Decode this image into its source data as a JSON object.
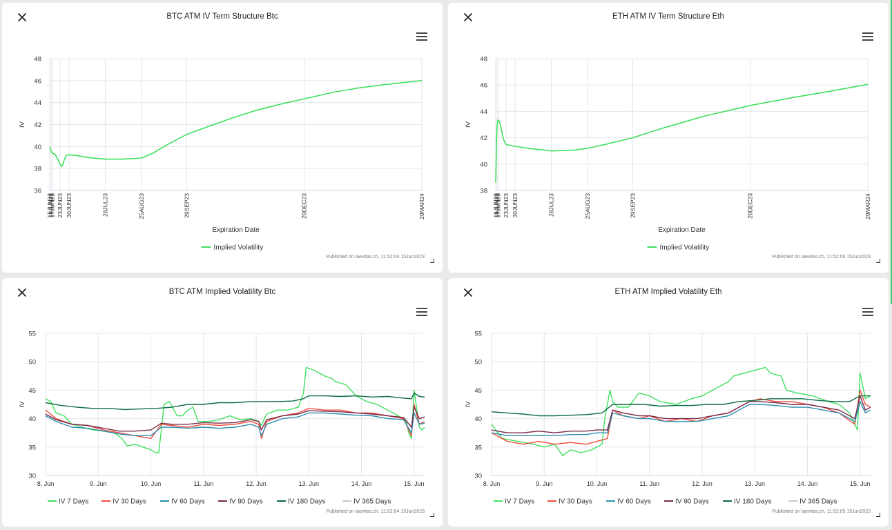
{
  "colors": {
    "iv7": "#3fe05e",
    "iv30": "#ef4b3c",
    "iv60": "#2c8fb0",
    "iv90": "#7a2a4a",
    "iv180": "#0d6b42",
    "iv365": "#c9c9c9",
    "grid": "#e3e6ec",
    "axis": "#333333"
  },
  "chart_data": [
    {
      "id": "btc-term",
      "type": "line",
      "title": "BTC ATM IV Term Structure Btc",
      "xlabel": "Expiration Date",
      "ylabel": "IV",
      "ylim": [
        36,
        48
      ],
      "yticks": [
        36,
        38,
        40,
        42,
        44,
        46,
        48
      ],
      "categories": [
        "15JUN23",
        "16JUN23",
        "17JUN23",
        "23JUN23",
        "30JUN23",
        "28JUL23",
        "25AUG23",
        "29SEP23",
        "29DEC23",
        "29MAR24"
      ],
      "x_days": [
        0,
        1,
        2,
        8,
        15,
        43,
        71,
        106,
        197,
        288
      ],
      "series": [
        {
          "name": "Implied Volatility",
          "color_key": "iv7",
          "x": [
            0,
            1,
            2,
            4,
            6,
            8,
            9,
            10,
            11,
            12,
            13,
            15,
            20,
            30,
            43,
            55,
            65,
            71,
            80,
            90,
            106,
            120,
            140,
            160,
            180,
            197,
            220,
            240,
            260,
            288
          ],
          "y": [
            40.0,
            39.6,
            39.4,
            39.3,
            38.9,
            38.4,
            38.2,
            38.3,
            38.7,
            39.0,
            39.2,
            39.25,
            39.2,
            39.0,
            38.85,
            38.85,
            38.9,
            38.95,
            39.4,
            40.1,
            41.1,
            41.7,
            42.55,
            43.3,
            43.9,
            44.35,
            44.95,
            45.35,
            45.65,
            46.0
          ]
        }
      ],
      "legend": "bottom-center",
      "credit": "Published on laevitas.ch, 11:52:04 15Jun2023"
    },
    {
      "id": "eth-term",
      "type": "line",
      "title": "ETH ATM IV Term Structure Eth",
      "xlabel": "Expiration Date",
      "ylabel": "IV",
      "ylim": [
        38,
        48
      ],
      "yticks": [
        38,
        40,
        42,
        44,
        46,
        48
      ],
      "categories": [
        "15JUN23",
        "16JUN23",
        "17JUN23",
        "23JUN23",
        "30JUN23",
        "28JUL23",
        "25AUG23",
        "29SEP23",
        "29DEC23",
        "29MAR24"
      ],
      "x_days": [
        0,
        1,
        2,
        8,
        15,
        43,
        71,
        106,
        197,
        288
      ],
      "series": [
        {
          "name": "Implied Volatility",
          "color_key": "iv7",
          "x": [
            0,
            0.5,
            1,
            1.5,
            2,
            3,
            4,
            5,
            6,
            7,
            8,
            10,
            15,
            25,
            43,
            60,
            71,
            85,
            106,
            130,
            160,
            197,
            230,
            260,
            288
          ],
          "y": [
            38.6,
            41.2,
            42.8,
            43.3,
            43.35,
            43.2,
            42.8,
            42.3,
            41.9,
            41.65,
            41.5,
            41.45,
            41.35,
            41.2,
            41.0,
            41.05,
            41.2,
            41.5,
            42.0,
            42.75,
            43.6,
            44.45,
            45.05,
            45.55,
            46.05
          ]
        }
      ],
      "legend": "bottom-center",
      "credit": "Published on laevitas.ch, 11:52:05 15Jun2023"
    },
    {
      "id": "btc-iv",
      "type": "line",
      "title": "BTC ATM Implied Volatility Btc",
      "ylabel": "IV",
      "ylim": [
        30,
        55
      ],
      "yticks": [
        30,
        35,
        40,
        45,
        50,
        55
      ],
      "xlim": [
        8.0,
        15.2
      ],
      "xticks": [
        8,
        9,
        10,
        11,
        12,
        13,
        14,
        15
      ],
      "xticklabels": [
        "8. Jun",
        "9. Jun",
        "10. Jun",
        "11. Jun",
        "12. Jun",
        "13. Jun",
        "14. Jun",
        "15. Jun"
      ],
      "legend": "bottom-center",
      "credit": "Published on laevitas.ch, 11:52:04 15Jun2023",
      "series": [
        {
          "name": "IV 7 Days",
          "color_key": "iv7",
          "x": [
            8.0,
            8.1,
            8.2,
            8.35,
            8.5,
            8.7,
            8.9,
            9.1,
            9.3,
            9.45,
            9.55,
            9.7,
            9.85,
            10.0,
            10.1,
            10.15,
            10.2,
            10.25,
            10.35,
            10.5,
            10.6,
            10.7,
            10.8,
            10.9,
            11.1,
            11.3,
            11.5,
            11.7,
            11.9,
            12.05,
            12.1,
            12.2,
            12.4,
            12.6,
            12.8,
            12.9,
            12.95,
            13.1,
            13.3,
            13.45,
            13.5,
            13.7,
            13.9,
            14.1,
            14.3,
            14.5,
            14.7,
            14.85,
            14.9,
            14.95,
            15.0,
            15.1,
            15.15,
            15.2
          ],
          "y": [
            43.5,
            43.0,
            41.0,
            40.5,
            39.0,
            38.5,
            38.0,
            37.8,
            37.5,
            36.5,
            35.2,
            35.5,
            35.0,
            34.5,
            34.0,
            34.0,
            38.0,
            42.5,
            43.0,
            40.5,
            40.5,
            41.5,
            42.0,
            39.5,
            39.5,
            39.8,
            40.5,
            39.8,
            40.0,
            39.5,
            38.8,
            40.8,
            41.5,
            41.5,
            42.0,
            44.5,
            49.0,
            48.5,
            47.5,
            47.0,
            46.5,
            46.0,
            44.0,
            43.0,
            42.5,
            41.5,
            40.5,
            39.5,
            37.5,
            36.5,
            45.0,
            38.5,
            38.0,
            38.5
          ]
        },
        {
          "name": "IV 30 Days",
          "color_key": "iv30",
          "x": [
            8.0,
            8.2,
            8.5,
            8.8,
            9.1,
            9.4,
            9.7,
            10.0,
            10.2,
            10.4,
            10.7,
            11.0,
            11.3,
            11.6,
            11.9,
            12.05,
            12.1,
            12.2,
            12.5,
            12.8,
            13.0,
            13.3,
            13.6,
            13.9,
            14.2,
            14.5,
            14.8,
            14.95,
            15.0,
            15.1,
            15.2
          ],
          "y": [
            41.5,
            40.0,
            39.0,
            38.8,
            38.0,
            37.5,
            37.0,
            36.5,
            39.0,
            38.8,
            38.5,
            39.0,
            38.8,
            39.0,
            39.5,
            39.0,
            36.5,
            39.5,
            40.5,
            41.0,
            41.8,
            41.5,
            41.5,
            41.0,
            41.0,
            40.5,
            40.0,
            37.0,
            42.5,
            39.0,
            39.5
          ]
        },
        {
          "name": "IV 60 Days",
          "color_key": "iv60",
          "x": [
            8.0,
            8.2,
            8.5,
            8.8,
            9.1,
            9.4,
            9.7,
            10.0,
            10.2,
            10.4,
            10.7,
            11.0,
            11.3,
            11.6,
            11.9,
            12.05,
            12.1,
            12.2,
            12.5,
            12.8,
            13.0,
            13.3,
            13.6,
            13.9,
            14.2,
            14.5,
            14.8,
            14.95,
            15.0,
            15.1,
            15.2
          ],
          "y": [
            40.5,
            39.5,
            38.5,
            38.3,
            37.8,
            37.3,
            37.0,
            37.0,
            38.5,
            38.5,
            38.3,
            38.5,
            38.3,
            38.5,
            39.0,
            38.5,
            37.0,
            39.0,
            40.0,
            40.3,
            41.0,
            41.0,
            40.8,
            40.6,
            40.5,
            40.0,
            39.8,
            37.5,
            41.0,
            39.0,
            39.2
          ]
        },
        {
          "name": "IV 90 Days",
          "color_key": "iv90",
          "x": [
            8.0,
            8.2,
            8.5,
            8.8,
            9.1,
            9.4,
            9.7,
            10.0,
            10.2,
            10.4,
            10.7,
            11.0,
            11.3,
            11.6,
            11.9,
            12.05,
            12.1,
            12.2,
            12.5,
            12.8,
            13.0,
            13.3,
            13.6,
            13.9,
            14.2,
            14.5,
            14.8,
            14.95,
            15.0,
            15.1,
            15.2
          ],
          "y": [
            40.8,
            39.8,
            39.0,
            38.8,
            38.3,
            37.8,
            37.8,
            38.0,
            39.2,
            39.0,
            39.0,
            39.3,
            39.2,
            39.3,
            39.8,
            39.5,
            38.0,
            39.8,
            40.5,
            40.8,
            41.4,
            41.3,
            41.2,
            41.0,
            40.8,
            40.5,
            40.2,
            38.5,
            42.0,
            40.0,
            40.3
          ]
        },
        {
          "name": "IV 180 Days",
          "color_key": "iv180",
          "x": [
            8.0,
            8.3,
            8.6,
            8.9,
            9.2,
            9.5,
            9.8,
            10.1,
            10.4,
            10.7,
            11.0,
            11.3,
            11.6,
            11.9,
            12.1,
            12.4,
            12.7,
            12.9,
            13.0,
            13.3,
            13.6,
            13.9,
            14.2,
            14.5,
            14.8,
            14.95,
            15.0,
            15.1,
            15.2
          ],
          "y": [
            42.8,
            42.3,
            42.0,
            41.8,
            41.8,
            41.6,
            41.7,
            41.8,
            42.0,
            42.5,
            42.5,
            42.8,
            42.8,
            43.0,
            43.0,
            43.0,
            43.1,
            43.5,
            44.0,
            44.0,
            43.9,
            44.0,
            43.8,
            43.9,
            43.6,
            43.5,
            44.5,
            43.9,
            43.8
          ]
        },
        {
          "name": "IV 365 Days",
          "color_key": "iv365",
          "x": [],
          "y": []
        }
      ]
    },
    {
      "id": "eth-iv",
      "type": "line",
      "title": "ETH ATM Implied Volatility Eth",
      "ylabel": "IV",
      "ylim": [
        30,
        55
      ],
      "yticks": [
        30,
        35,
        40,
        45,
        50,
        55
      ],
      "xlim": [
        8.0,
        15.2
      ],
      "xticks": [
        8,
        9,
        10,
        11,
        12,
        13,
        14,
        15
      ],
      "xticklabels": [
        "8. Jun",
        "9. Jun",
        "10. Jun",
        "11. Jun",
        "12. Jun",
        "13. Jun",
        "14. Jun",
        "15. Jun"
      ],
      "legend": "bottom-center",
      "credit": "Published on laevitas.ch, 11:52:05 15Jun2023",
      "series": [
        {
          "name": "IV 7 Days",
          "color_key": "iv7",
          "x": [
            8.0,
            8.2,
            8.5,
            8.8,
            9.0,
            9.2,
            9.35,
            9.5,
            9.7,
            9.9,
            10.1,
            10.15,
            10.25,
            10.3,
            10.4,
            10.6,
            10.8,
            11.0,
            11.2,
            11.5,
            11.8,
            12.0,
            12.3,
            12.5,
            12.6,
            12.8,
            13.0,
            13.2,
            13.3,
            13.5,
            13.6,
            13.8,
            14.1,
            14.4,
            14.6,
            14.8,
            14.95,
            15.0,
            15.1,
            15.2
          ],
          "y": [
            39.0,
            36.5,
            36.0,
            35.5,
            35.0,
            35.5,
            33.5,
            34.5,
            34.0,
            34.5,
            35.5,
            40.0,
            45.0,
            43.0,
            42.0,
            42.0,
            44.5,
            44.0,
            43.0,
            42.5,
            43.5,
            44.0,
            45.5,
            46.5,
            47.5,
            48.0,
            48.5,
            49.0,
            48.0,
            47.5,
            45.0,
            44.5,
            44.0,
            43.0,
            42.5,
            41.0,
            38.0,
            48.0,
            43.5,
            44.0
          ]
        },
        {
          "name": "IV 30 Days",
          "color_key": "iv30",
          "x": [
            8.0,
            8.3,
            8.6,
            8.9,
            9.2,
            9.5,
            9.8,
            10.0,
            10.2,
            10.3,
            10.5,
            10.8,
            11.0,
            11.3,
            11.6,
            11.9,
            12.2,
            12.5,
            12.7,
            12.9,
            13.1,
            13.4,
            13.7,
            14.0,
            14.3,
            14.6,
            14.9,
            15.0,
            15.1,
            15.2
          ],
          "y": [
            37.5,
            36.0,
            35.5,
            36.0,
            35.5,
            35.8,
            35.5,
            36.0,
            36.5,
            41.5,
            40.5,
            40.0,
            40.5,
            39.5,
            40.0,
            39.5,
            40.5,
            41.0,
            42.0,
            43.0,
            43.5,
            43.0,
            43.0,
            42.5,
            42.0,
            41.0,
            39.0,
            45.0,
            42.5,
            42.0
          ]
        },
        {
          "name": "IV 60 Days",
          "color_key": "iv60",
          "x": [
            8.0,
            8.3,
            8.6,
            8.9,
            9.2,
            9.5,
            9.8,
            10.0,
            10.2,
            10.3,
            10.5,
            10.8,
            11.0,
            11.3,
            11.6,
            11.9,
            12.2,
            12.5,
            12.7,
            12.9,
            13.1,
            13.4,
            13.7,
            14.0,
            14.3,
            14.6,
            14.9,
            15.0,
            15.1,
            15.2
          ],
          "y": [
            37.5,
            37.0,
            37.0,
            37.0,
            37.0,
            37.2,
            37.2,
            37.5,
            37.5,
            41.0,
            40.5,
            40.0,
            40.0,
            39.5,
            39.5,
            39.5,
            40.0,
            40.5,
            41.5,
            42.5,
            42.5,
            42.3,
            42.0,
            42.0,
            41.5,
            41.0,
            39.5,
            43.0,
            41.0,
            41.5
          ]
        },
        {
          "name": "IV 90 Days",
          "color_key": "iv90",
          "x": [
            8.0,
            8.3,
            8.6,
            8.9,
            9.2,
            9.5,
            9.8,
            10.0,
            10.2,
            10.3,
            10.5,
            10.8,
            11.0,
            11.3,
            11.6,
            11.9,
            12.2,
            12.5,
            12.7,
            12.9,
            13.1,
            13.4,
            13.7,
            14.0,
            14.3,
            14.6,
            14.9,
            15.0,
            15.1,
            15.2
          ],
          "y": [
            38.0,
            37.5,
            37.5,
            37.8,
            37.5,
            37.8,
            37.8,
            38.0,
            38.0,
            41.5,
            41.0,
            40.5,
            40.5,
            40.0,
            40.0,
            40.0,
            40.5,
            41.0,
            42.0,
            43.0,
            43.0,
            42.8,
            42.5,
            42.5,
            42.0,
            41.5,
            40.0,
            44.0,
            41.5,
            42.0
          ]
        },
        {
          "name": "IV 180 Days",
          "color_key": "iv180",
          "x": [
            8.0,
            8.3,
            8.6,
            8.9,
            9.2,
            9.5,
            9.8,
            10.1,
            10.3,
            10.6,
            10.9,
            11.2,
            11.5,
            11.8,
            12.1,
            12.4,
            12.7,
            13.0,
            13.3,
            13.6,
            13.9,
            14.2,
            14.5,
            14.8,
            15.0,
            15.1,
            15.2
          ],
          "y": [
            41.2,
            41.0,
            40.8,
            40.5,
            40.5,
            40.6,
            40.7,
            41.0,
            42.5,
            42.5,
            42.5,
            42.2,
            42.3,
            42.3,
            42.5,
            42.5,
            43.0,
            43.2,
            43.5,
            43.5,
            43.5,
            43.2,
            43.0,
            43.0,
            44.0,
            44.0,
            44.0
          ]
        },
        {
          "name": "IV 365 Days",
          "color_key": "iv365",
          "x": [],
          "y": []
        }
      ]
    }
  ]
}
